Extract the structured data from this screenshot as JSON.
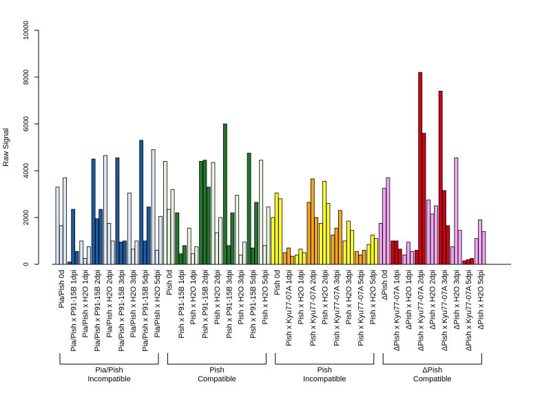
{
  "chart_data": {
    "type": "bar",
    "title": "",
    "xlabel": "",
    "ylabel": "Raw Signal",
    "ylim": [
      0,
      10000
    ],
    "yticks": [
      0,
      2000,
      4000,
      6000,
      8000,
      10000
    ],
    "grid": false,
    "categories": [
      "Pia/Pish 0d",
      "Pia/Pish x P91-15B 1dpi",
      "Pia/Pish x H2O 1dpi",
      "Pia/Pish x P91-15B 2dpi",
      "Pia/Pish x H2O 2dpi",
      "Pia/Pish x P91-15B 3dpi",
      "Pia/Pish x H2O 3dpi",
      "Pia/Pish x P91-15B 5dpi",
      "Pia/Pish x H2O 5dpi",
      "Pish 0d",
      "Pish x P91-15B 1dpi",
      "Pish x H2O 1dpi",
      "Pish x P91-15B 2dpi",
      "Pish x H2O 2dpi",
      "Pish x P91-15B 3dpi",
      "Pish x H2O 3dpi",
      "Pish x P91-15B 5dpi",
      "Pish x H2O 5dpi",
      "Pish 0d",
      "Pish x Kyu77-07A 1dpi",
      "Pish x H2O 1dpi",
      "Pish x Kyu77-07A 2dpi",
      "Pish x H2O 2dpi",
      "Pish x Kyu77-07A 3dpi",
      "Pish x H2O 3dpi",
      "Pish x Kyu77-07A 5dpi",
      "Pish x H2O 5dpi",
      "ΔPish 0d",
      "ΔPish x Kyu77-07A 1dpi",
      "ΔPish x H2O 1dpi",
      "ΔPish x Kyu77-07A 2dpi",
      "ΔPish x H2O 2dpi",
      "ΔPish x Kyu77-07A 3dpi",
      "ΔPish x H2O 3dpi",
      "ΔPish x Kyu77-07A 5dpi",
      "ΔPish x H2O 5dpi"
    ],
    "values": [
      [
        3300,
        1650,
        3700
      ],
      [
        100,
        2350,
        550
      ],
      [
        1000,
        250,
        750
      ],
      [
        4500,
        1950,
        2350
      ],
      [
        4650,
        1750,
        1000
      ],
      [
        4550,
        950,
        1000
      ],
      [
        3050,
        650,
        1000
      ],
      [
        5300,
        1000,
        2450
      ],
      [
        4900,
        600,
        2050
      ],
      [
        4400,
        2350,
        3200
      ],
      [
        2200,
        450,
        800
      ],
      [
        1550,
        450,
        750
      ],
      [
        4400,
        4450,
        3300
      ],
      [
        4350,
        1350,
        2000
      ],
      [
        6000,
        800,
        2200
      ],
      [
        2950,
        400,
        950
      ],
      [
        4750,
        700,
        2650
      ],
      [
        4450,
        800,
        2450
      ],
      [
        2000,
        3050,
        2800
      ],
      [
        500,
        700,
        350
      ],
      [
        400,
        650,
        500
      ],
      [
        2650,
        3650,
        2000
      ],
      [
        1750,
        3550,
        2600
      ],
      [
        1250,
        1550,
        2300
      ],
      [
        1000,
        1850,
        1450
      ],
      [
        550,
        400,
        600
      ],
      [
        850,
        1250,
        1100
      ],
      [
        1750,
        3250,
        3700
      ],
      [
        1000,
        1000,
        650
      ],
      [
        400,
        950,
        550
      ],
      [
        600,
        8200,
        5600
      ],
      [
        2750,
        2150,
        2500
      ],
      [
        7400,
        3150,
        1650
      ],
      [
        750,
        4550,
        1450
      ],
      [
        150,
        200,
        250
      ],
      [
        1100,
        1900,
        1400
      ]
    ],
    "bar_colors": [
      "#dce6f2",
      "#1f5a9e",
      "#dce6f2",
      "#1f5a9e",
      "#dce6f2",
      "#1f5a9e",
      "#dce6f2",
      "#1f5a9e",
      "#dce6f2",
      "#e8f3e2",
      "#23752f",
      "#e8f3e2",
      "#23752f",
      "#e8f3e2",
      "#23752f",
      "#e8f3e2",
      "#23752f",
      "#e8f3e2",
      "#ffff33",
      "#f5a623",
      "#ffff33",
      "#f5a623",
      "#ffff33",
      "#f5a623",
      "#ffff33",
      "#f5a623",
      "#ffff33",
      "#f2a6ef",
      "#cc0015",
      "#f2a6ef",
      "#cc0015",
      "#f2a6ef",
      "#cc0015",
      "#f2a6ef",
      "#cc0015",
      "#f2a6ef"
    ],
    "groups": [
      {
        "line1": "Pia/Pish",
        "line2": "Incompatible",
        "start": 0,
        "end": 8
      },
      {
        "line1": "Pish",
        "line2": "Compatible",
        "start": 9,
        "end": 17
      },
      {
        "line1": "Pish",
        "line2": "Incompatible",
        "start": 18,
        "end": 26
      },
      {
        "line1": "ΔPish",
        "line2": "Compatible",
        "start": 27,
        "end": 35
      }
    ]
  }
}
